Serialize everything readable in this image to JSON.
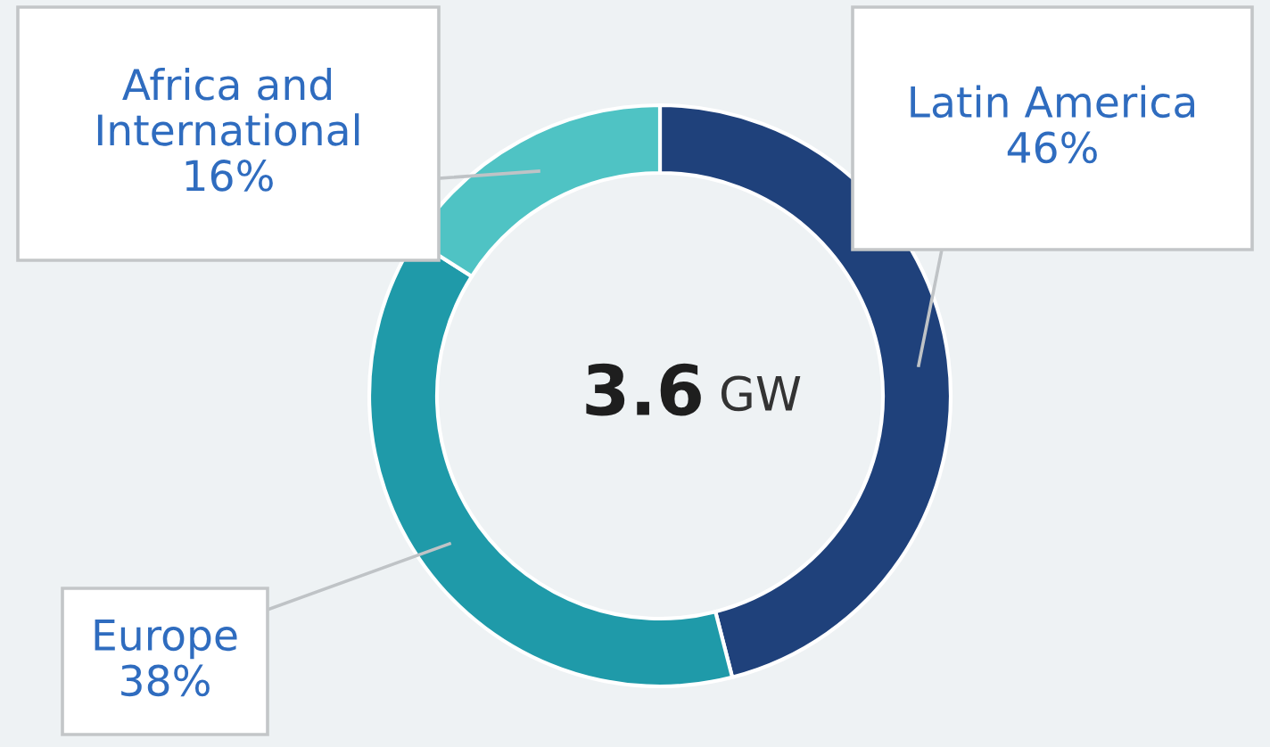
{
  "chart_data": {
    "type": "donut",
    "categories": [
      "Latin America",
      "Europe",
      "Africa and International"
    ],
    "values": [
      46,
      38,
      16
    ],
    "value_labels": [
      "46%",
      "38%",
      "16%"
    ],
    "colors": [
      "#1f417b",
      "#1f9aa9",
      "#4fc3c4"
    ],
    "annotations": [
      "3.6 GW"
    ]
  }
}
